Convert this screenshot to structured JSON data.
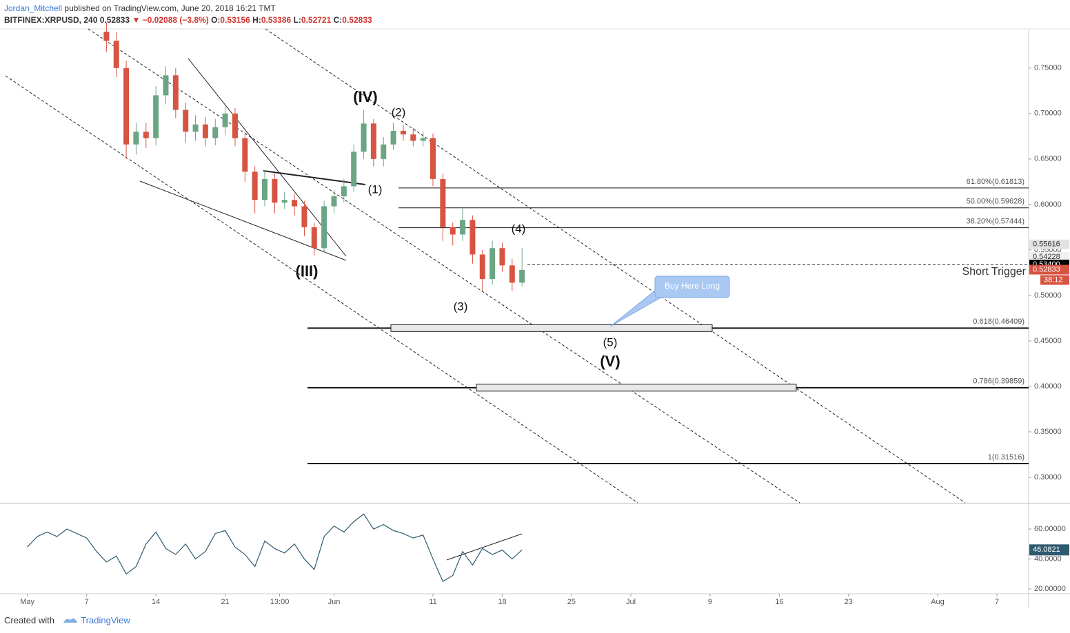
{
  "header": {
    "author": "Jordan_Mitchell",
    "published": "published on TradingView.com, June 20, 2018 16:21 TMT",
    "symbol": "BITFINEX:XRPUSD, 240",
    "last": "0.52833",
    "change": "▼ −0.02088 (−3.8%)",
    "ohlc": [
      {
        "key": "O:",
        "value": "0.53156"
      },
      {
        "key": "H:",
        "value": "0.53386"
      },
      {
        "key": "L:",
        "value": "0.52721"
      },
      {
        "key": "C:",
        "value": "0.52833"
      }
    ]
  },
  "footer": {
    "created": "Created with",
    "brand": "TradingView"
  },
  "chart_data": [
    {
      "type": "candlestick",
      "up_color": "#6ba583",
      "down_color": "#d75442",
      "x": [
        8,
        9,
        10,
        11,
        12,
        13,
        14,
        15,
        16,
        17,
        18,
        19,
        20,
        21,
        22,
        23,
        24,
        25,
        26,
        27,
        28,
        29,
        30,
        31,
        32,
        33,
        34,
        35,
        36,
        37,
        38,
        39,
        40,
        41,
        42,
        43,
        44,
        45,
        46,
        47,
        48,
        49,
        50
      ],
      "open": [
        0.79,
        0.78,
        0.75,
        0.666,
        0.68,
        0.673,
        0.72,
        0.742,
        0.704,
        0.68,
        0.688,
        0.673,
        0.685,
        0.7,
        0.673,
        0.636,
        0.605,
        0.628,
        0.602,
        0.605,
        0.598,
        0.575,
        0.552,
        0.598,
        0.609,
        0.62,
        0.658,
        0.689,
        0.65,
        0.666,
        0.681,
        0.677,
        0.67,
        0.673,
        0.628,
        0.575,
        0.567,
        0.583,
        0.545,
        0.518,
        0.552,
        0.533,
        0.514
      ],
      "high": [
        0.8,
        0.79,
        0.758,
        0.69,
        0.69,
        0.73,
        0.752,
        0.75,
        0.712,
        0.698,
        0.696,
        0.694,
        0.708,
        0.706,
        0.68,
        0.642,
        0.638,
        0.634,
        0.614,
        0.612,
        0.604,
        0.58,
        0.604,
        0.616,
        0.628,
        0.666,
        0.704,
        0.694,
        0.674,
        0.69,
        0.688,
        0.684,
        0.68,
        0.678,
        0.634,
        0.58,
        0.596,
        0.588,
        0.55,
        0.56,
        0.558,
        0.54,
        0.552
      ],
      "low": [
        0.768,
        0.74,
        0.65,
        0.655,
        0.662,
        0.665,
        0.71,
        0.695,
        0.668,
        0.67,
        0.664,
        0.665,
        0.676,
        0.664,
        0.625,
        0.59,
        0.598,
        0.59,
        0.595,
        0.588,
        0.565,
        0.544,
        0.548,
        0.59,
        0.602,
        0.614,
        0.65,
        0.642,
        0.642,
        0.66,
        0.67,
        0.664,
        0.664,
        0.62,
        0.56,
        0.555,
        0.56,
        0.535,
        0.505,
        0.512,
        0.526,
        0.505,
        0.51
      ],
      "close": [
        0.78,
        0.75,
        0.666,
        0.68,
        0.673,
        0.72,
        0.742,
        0.704,
        0.68,
        0.688,
        0.673,
        0.685,
        0.7,
        0.673,
        0.636,
        0.605,
        0.628,
        0.602,
        0.605,
        0.598,
        0.575,
        0.552,
        0.598,
        0.609,
        0.62,
        0.658,
        0.689,
        0.65,
        0.666,
        0.681,
        0.677,
        0.67,
        0.673,
        0.628,
        0.575,
        0.567,
        0.583,
        0.545,
        0.518,
        0.552,
        0.533,
        0.514,
        0.528
      ],
      "xlim": [
        -2.2,
        101.2
      ],
      "xticks": [
        {
          "value": 0,
          "label": "May"
        },
        {
          "value": 6,
          "label": "7"
        },
        {
          "value": 13,
          "label": "14"
        },
        {
          "value": 20,
          "label": "21"
        },
        {
          "value": 25.5,
          "label": "13:00"
        },
        {
          "value": 31,
          "label": "Jun"
        },
        {
          "value": 41,
          "label": "11"
        },
        {
          "value": 48,
          "label": "18"
        },
        {
          "value": 55,
          "label": "25"
        },
        {
          "value": 61,
          "label": "Jul"
        },
        {
          "value": 69,
          "label": "9"
        },
        {
          "value": 76,
          "label": "16"
        },
        {
          "value": 83,
          "label": "23"
        },
        {
          "value": 92,
          "label": "Aug"
        },
        {
          "value": 98,
          "label": "7"
        }
      ],
      "ylim": [
        0.272,
        0.793
      ],
      "yticks": [
        {
          "value": 0.3,
          "label": "0.30000"
        },
        {
          "value": 0.35,
          "label": "0.35000"
        },
        {
          "value": 0.4,
          "label": "0.40000"
        },
        {
          "value": 0.45,
          "label": "0.45000"
        },
        {
          "value": 0.5,
          "label": "0.50000"
        },
        {
          "value": 0.55,
          "label": "0.55000"
        },
        {
          "value": 0.6,
          "label": "0.60000"
        },
        {
          "value": 0.65,
          "label": "0.65000"
        },
        {
          "value": 0.7,
          "label": "0.70000"
        },
        {
          "value": 0.75,
          "label": "0.75000"
        }
      ],
      "levels": [
        {
          "value": 0.61813,
          "label": "61.80%(0.61813)"
        },
        {
          "value": 0.59628,
          "label": "50.00%(0.59628)"
        },
        {
          "value": 0.57444,
          "label": "38.20%(0.57444)"
        },
        {
          "value": 0.46409,
          "label": "0.618(0.46409)"
        },
        {
          "value": 0.39859,
          "label": "0.786(0.39859)"
        },
        {
          "value": 0.31516,
          "label": "1(0.31516)"
        }
      ],
      "trigger": {
        "value": 0.534,
        "label": "Short Trigger"
      },
      "price_labels": [
        {
          "value": 0.55616,
          "label": "0.55616",
          "color": "#e3e3e3"
        },
        {
          "value": 0.54228,
          "label": "0.54228",
          "color": "#f0f0f0"
        },
        {
          "value": 0.534,
          "label": "0.53400",
          "color": "#000000"
        },
        {
          "value": 0.52833,
          "label": "0.52833",
          "color": "#d75442"
        }
      ],
      "countdown": "38:12",
      "annotations": [
        "(IV)",
        "(2)",
        "(1)",
        "(III)",
        "(4)",
        "(3)",
        "(5)",
        "(V)"
      ],
      "callout": "Buy Here Long"
    },
    {
      "type": "line",
      "color": "#2e5a6f",
      "x": [
        0,
        1,
        2,
        3,
        4,
        5,
        6,
        7,
        8,
        9,
        10,
        11,
        12,
        13,
        14,
        15,
        16,
        17,
        18,
        19,
        20,
        21,
        22,
        23,
        24,
        25,
        26,
        27,
        28,
        29,
        30,
        31,
        32,
        33,
        34,
        35,
        36,
        37,
        38,
        39,
        40,
        41,
        42,
        43,
        44,
        45,
        46,
        47,
        48,
        49,
        50
      ],
      "values": [
        48,
        55,
        58,
        55,
        60,
        57,
        54,
        45,
        38,
        42,
        30,
        35,
        50,
        58,
        47,
        43,
        50,
        40,
        45,
        57,
        59,
        48,
        43,
        35,
        52,
        47,
        44,
        50,
        40,
        33,
        55,
        62,
        58,
        65,
        70,
        60,
        63,
        59,
        57,
        54,
        56,
        40,
        25,
        29,
        45,
        36,
        47,
        43,
        46,
        40,
        46.0821
      ],
      "last_label": "46.0821",
      "ylim": [
        16.8,
        76.6
      ],
      "yticks": [
        {
          "value": 20,
          "label": "20.00000"
        },
        {
          "value": 40,
          "label": "40.0000"
        },
        {
          "value": 60,
          "label": "60.00000"
        }
      ]
    }
  ]
}
